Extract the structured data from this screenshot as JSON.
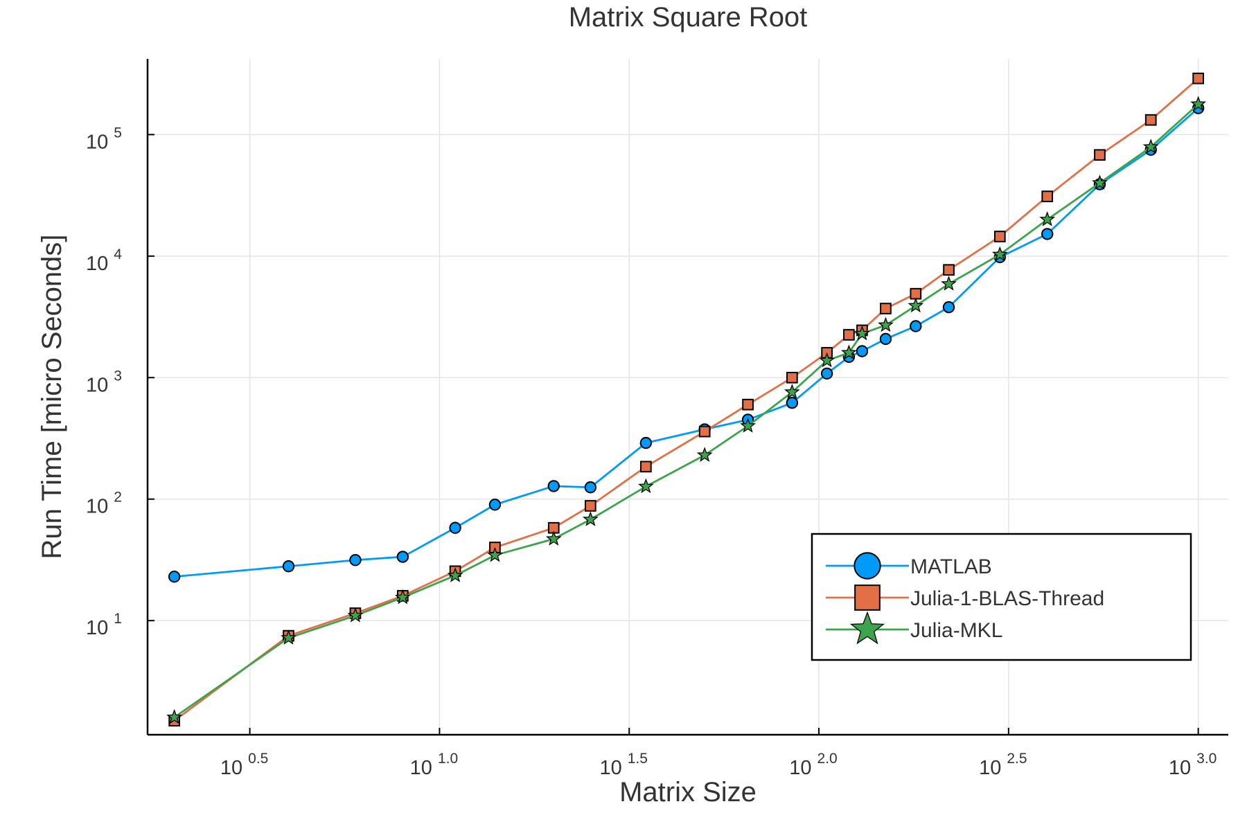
{
  "chart_data": {
    "type": "line",
    "title": "Matrix Square Root",
    "xlabel": "Matrix Size",
    "ylabel": "Run Time  [micro Seconds]",
    "x_scale": "log10",
    "y_scale": "log10",
    "xlim": [
      1.7,
      1200
    ],
    "ylim": [
      1.15,
      420000
    ],
    "x_ticks": [
      {
        "value": 3.1623,
        "base": "10",
        "exp": "0.5"
      },
      {
        "value": 10,
        "base": "10",
        "exp": "1.0"
      },
      {
        "value": 31.623,
        "base": "10",
        "exp": "1.5"
      },
      {
        "value": 100,
        "base": "10",
        "exp": "2.0"
      },
      {
        "value": 316.23,
        "base": "10",
        "exp": "2.5"
      },
      {
        "value": 1000,
        "base": "10",
        "exp": "3.0"
      }
    ],
    "y_ticks": [
      {
        "value": 10,
        "base": "10",
        "exp": "1"
      },
      {
        "value": 100,
        "base": "10",
        "exp": "2"
      },
      {
        "value": 1000,
        "base": "10",
        "exp": "3"
      },
      {
        "value": 10000,
        "base": "10",
        "exp": "4"
      },
      {
        "value": 100000,
        "base": "10",
        "exp": "5"
      }
    ],
    "grid": true,
    "legend_position": "bottom-right",
    "x": [
      2,
      4,
      6,
      8,
      11,
      14,
      20,
      25,
      35,
      50,
      65,
      85,
      105,
      120,
      130,
      150,
      180,
      220,
      300,
      400,
      550,
      750,
      1000
    ],
    "series": [
      {
        "name": "MATLAB",
        "color": "#009af9",
        "marker": "circle",
        "values": [
          23,
          28,
          31.5,
          33.5,
          58,
          90,
          128,
          125,
          290,
          375,
          450,
          620,
          1080,
          1480,
          1650,
          2080,
          2650,
          3800,
          9800,
          15200,
          39000,
          75000,
          165000
        ]
      },
      {
        "name": "Julia-1-BLAS-Thread",
        "color": "#e26f46",
        "marker": "square",
        "values": [
          1.5,
          7.5,
          11.5,
          16,
          25.5,
          40,
          58,
          88,
          185,
          360,
          600,
          1000,
          1600,
          2250,
          2450,
          3700,
          4900,
          7700,
          14500,
          31000,
          68000,
          132000,
          290000
        ]
      },
      {
        "name": "Julia-MKL",
        "color": "#3da44d",
        "marker": "star",
        "values": [
          1.6,
          7.2,
          11,
          15.5,
          23.5,
          34.5,
          47,
          68,
          127,
          230,
          400,
          760,
          1380,
          1600,
          2300,
          2700,
          3900,
          5900,
          10300,
          20000,
          40000,
          79000,
          178000
        ]
      }
    ]
  }
}
